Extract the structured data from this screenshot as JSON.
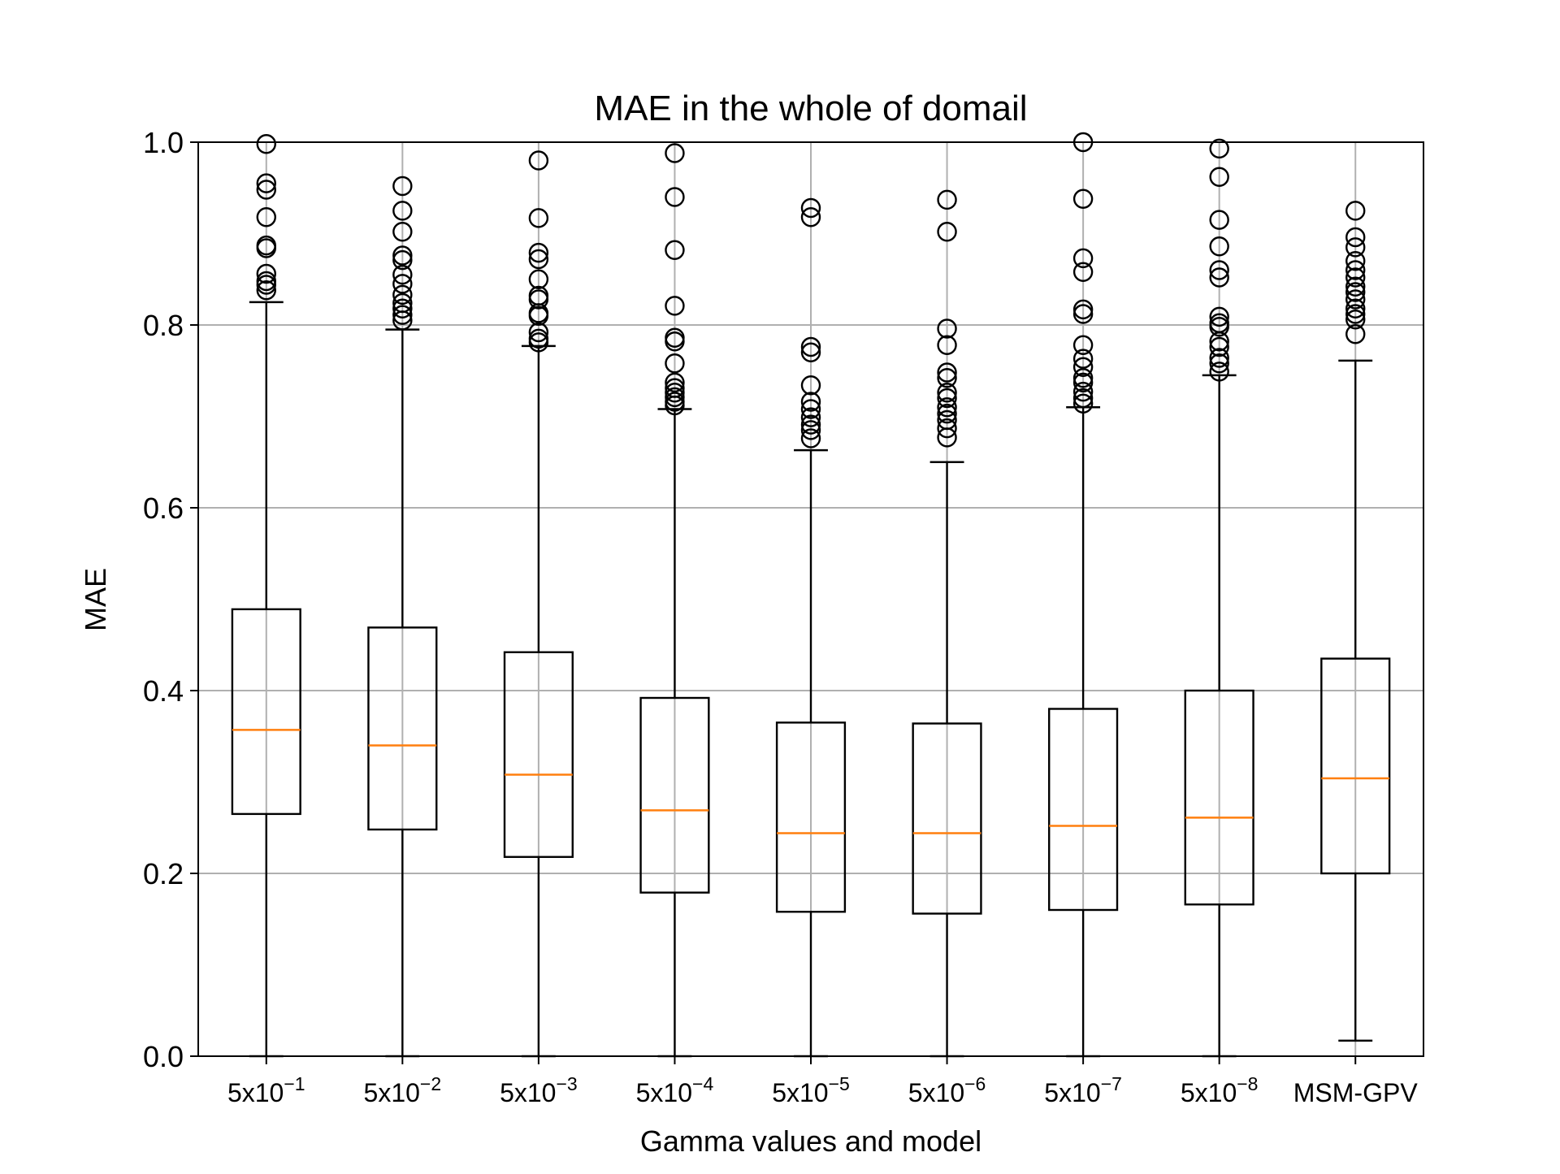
{
  "chart_data": {
    "type": "box",
    "title": "MAE in the whole of domail",
    "xlabel": "Gamma values and model",
    "ylabel": "MAE",
    "ylim": [
      0.0,
      1.0
    ],
    "yticks": [
      "0.0",
      "0.2",
      "0.4",
      "0.6",
      "0.8",
      "1.0"
    ],
    "ytick_values": [
      0.0,
      0.2,
      0.4,
      0.6,
      0.8,
      1.0
    ],
    "grid": true,
    "legend": "none",
    "colors": {
      "box": "#000000",
      "median": "#ff7f0e",
      "grid": "#b0b0b0",
      "outlier": "#000000"
    },
    "categories": [
      {
        "base": "5x10",
        "exp": "−1"
      },
      {
        "base": "5x10",
        "exp": "−2"
      },
      {
        "base": "5x10",
        "exp": "−3"
      },
      {
        "base": "5x10",
        "exp": "−4"
      },
      {
        "base": "5x10",
        "exp": "−5"
      },
      {
        "base": "5x10",
        "exp": "−6"
      },
      {
        "base": "5x10",
        "exp": "−7"
      },
      {
        "base": "5x10",
        "exp": "−8"
      },
      {
        "base": "MSM-GPV",
        "exp": ""
      }
    ],
    "boxes": [
      {
        "whislo": 0.0,
        "q1": 0.265,
        "median": 0.357,
        "q3": 0.489,
        "whishi": 0.825,
        "fliers": [
          0.998,
          0.955,
          0.948,
          0.918,
          0.887,
          0.884,
          0.856,
          0.848,
          0.844,
          0.838
        ]
      },
      {
        "whislo": 0.0,
        "q1": 0.248,
        "median": 0.34,
        "q3": 0.469,
        "whishi": 0.795,
        "fliers": [
          0.952,
          0.925,
          0.902,
          0.876,
          0.871,
          0.855,
          0.845,
          0.833,
          0.824,
          0.818,
          0.811,
          0.805
        ]
      },
      {
        "whislo": 0.0,
        "q1": 0.218,
        "median": 0.308,
        "q3": 0.442,
        "whishi": 0.777,
        "fliers": [
          0.98,
          0.917,
          0.879,
          0.872,
          0.85,
          0.832,
          0.828,
          0.813,
          0.81,
          0.792,
          0.785,
          0.781
        ]
      },
      {
        "whislo": 0.0,
        "q1": 0.179,
        "median": 0.269,
        "q3": 0.392,
        "whishi": 0.708,
        "fliers": [
          0.988,
          0.94,
          0.882,
          0.821,
          0.786,
          0.782,
          0.758,
          0.737,
          0.731,
          0.726,
          0.721,
          0.716,
          0.712
        ]
      },
      {
        "whislo": 0.0,
        "q1": 0.158,
        "median": 0.244,
        "q3": 0.365,
        "whishi": 0.663,
        "fliers": [
          0.928,
          0.918,
          0.776,
          0.77,
          0.734,
          0.716,
          0.708,
          0.699,
          0.691,
          0.685,
          0.676
        ]
      },
      {
        "whislo": 0.0,
        "q1": 0.156,
        "median": 0.244,
        "q3": 0.364,
        "whishi": 0.65,
        "fliers": [
          0.937,
          0.902,
          0.796,
          0.778,
          0.748,
          0.742,
          0.726,
          0.72,
          0.71,
          0.703,
          0.696,
          0.687,
          0.677
        ]
      },
      {
        "whislo": 0.0,
        "q1": 0.16,
        "median": 0.252,
        "q3": 0.38,
        "whishi": 0.71,
        "fliers": [
          1.0,
          0.938,
          0.873,
          0.858,
          0.817,
          0.812,
          0.778,
          0.763,
          0.754,
          0.742,
          0.737,
          0.727,
          0.72,
          0.714
        ]
      },
      {
        "whislo": 0.0,
        "q1": 0.166,
        "median": 0.261,
        "q3": 0.4,
        "whishi": 0.745,
        "fliers": [
          0.993,
          0.962,
          0.915,
          0.886,
          0.86,
          0.852,
          0.809,
          0.802,
          0.798,
          0.782,
          0.776,
          0.764,
          0.758,
          0.749
        ]
      },
      {
        "whislo": 0.017,
        "q1": 0.2,
        "median": 0.304,
        "q3": 0.435,
        "whishi": 0.761,
        "fliers": [
          0.925,
          0.896,
          0.885,
          0.87,
          0.86,
          0.852,
          0.842,
          0.836,
          0.828,
          0.818,
          0.812,
          0.806,
          0.79
        ]
      }
    ]
  }
}
